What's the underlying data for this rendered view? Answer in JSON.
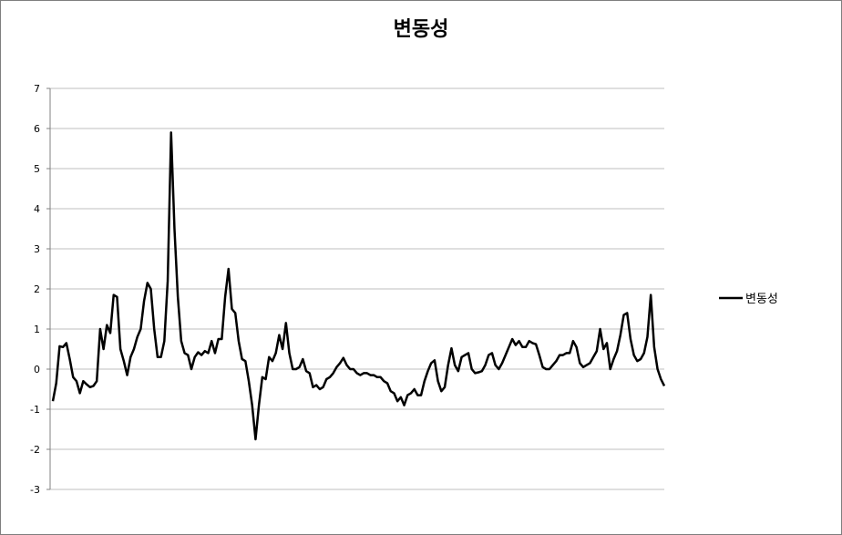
{
  "chart_data": {
    "type": "line",
    "title": "변동성",
    "xlabel": "",
    "ylabel": "",
    "ylim": [
      -3,
      7
    ],
    "yticks": [
      7,
      6,
      5,
      4,
      3,
      2,
      1,
      0,
      -1,
      -2,
      -3
    ],
    "grid": true,
    "legend_position": "right",
    "colors": {
      "series": "#000000",
      "grid": "#bfbfbf",
      "axis": "#808080"
    },
    "series": [
      {
        "name": "변동성",
        "values": [
          -0.8,
          -0.35,
          0.57,
          0.55,
          0.65,
          0.25,
          -0.2,
          -0.3,
          -0.6,
          -0.3,
          -0.38,
          -0.45,
          -0.42,
          -0.3,
          1.0,
          0.5,
          1.1,
          0.9,
          1.85,
          1.8,
          0.5,
          0.2,
          -0.15,
          0.3,
          0.5,
          0.8,
          1.0,
          1.7,
          2.15,
          2.0,
          1.0,
          0.3,
          0.3,
          0.7,
          2.2,
          5.9,
          3.5,
          1.8,
          0.7,
          0.4,
          0.35,
          0.0,
          0.3,
          0.42,
          0.35,
          0.45,
          0.4,
          0.7,
          0.4,
          0.75,
          0.75,
          1.8,
          2.5,
          1.5,
          1.4,
          0.7,
          0.25,
          0.2,
          -0.3,
          -0.9,
          -1.75,
          -0.9,
          -0.2,
          -0.25,
          0.3,
          0.2,
          0.4,
          0.85,
          0.5,
          1.15,
          0.4,
          0.0,
          0.0,
          0.05,
          0.25,
          -0.05,
          -0.1,
          -0.45,
          -0.4,
          -0.5,
          -0.45,
          -0.25,
          -0.2,
          -0.1,
          0.05,
          0.15,
          0.28,
          0.1,
          0.0,
          0.0,
          -0.1,
          -0.15,
          -0.1,
          -0.1,
          -0.15,
          -0.15,
          -0.2,
          -0.2,
          -0.3,
          -0.35,
          -0.55,
          -0.6,
          -0.8,
          -0.7,
          -0.9,
          -0.65,
          -0.6,
          -0.5,
          -0.65,
          -0.65,
          -0.3,
          -0.05,
          0.15,
          0.22,
          -0.3,
          -0.55,
          -0.45,
          0.1,
          0.52,
          0.1,
          -0.05,
          0.3,
          0.35,
          0.4,
          0.0,
          -0.1,
          -0.08,
          -0.05,
          0.1,
          0.35,
          0.4,
          0.1,
          0.0,
          0.15,
          0.35,
          0.55,
          0.75,
          0.6,
          0.7,
          0.55,
          0.55,
          0.7,
          0.65,
          0.62,
          0.35,
          0.05,
          0.0,
          0.0,
          0.1,
          0.2,
          0.35,
          0.35,
          0.4,
          0.4,
          0.7,
          0.55,
          0.15,
          0.05,
          0.1,
          0.15,
          0.3,
          0.45,
          1.0,
          0.5,
          0.65,
          0.0,
          0.25,
          0.45,
          0.85,
          1.35,
          1.4,
          0.75,
          0.35,
          0.2,
          0.25,
          0.4,
          0.8,
          1.85,
          0.55,
          0.0,
          -0.25,
          -0.42
        ]
      }
    ]
  }
}
